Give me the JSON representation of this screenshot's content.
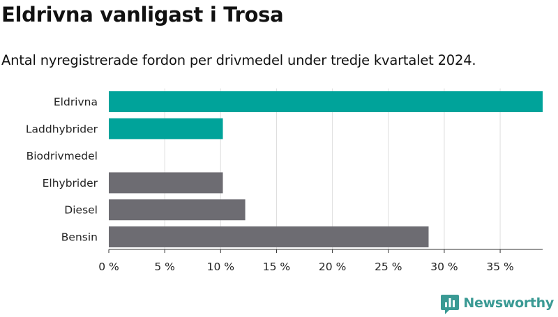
{
  "header": {
    "title": "Eldrivna vanligast i Trosa",
    "subtitle": "Antal nyregistrerade fordon per drivmedel under tredje kvartalet 2024."
  },
  "chart_data": {
    "type": "bar",
    "orientation": "horizontal",
    "categories": [
      "Eldrivna",
      "Laddhybrider",
      "Biodrivmedel",
      "Elhybrider",
      "Diesel",
      "Bensin"
    ],
    "values": [
      38.8,
      10.2,
      0,
      10.2,
      12.2,
      28.6
    ],
    "value_unit": "%",
    "xlim": [
      0,
      38.8
    ],
    "x_ticks": [
      0,
      5,
      10,
      15,
      20,
      25,
      30,
      35
    ],
    "x_tick_labels": [
      "0 %",
      "5 %",
      "10 %",
      "15 %",
      "20 %",
      "25 %",
      "30 %",
      "35 %"
    ],
    "grid": "vertical",
    "colors": {
      "Eldrivna": "#00a39a",
      "Laddhybrider": "#00a39a",
      "Biodrivmedel": "#00a39a",
      "Elhybrider": "#6d6c72",
      "Diesel": "#6d6c72",
      "Bensin": "#6d6c72"
    },
    "grid_color": "#dedede",
    "axis_color": "#333333"
  },
  "footer": {
    "brand": "Newsworthy",
    "brand_color": "#3a9a94",
    "brand_icon": "bar-chart-speech-bubble-icon"
  }
}
